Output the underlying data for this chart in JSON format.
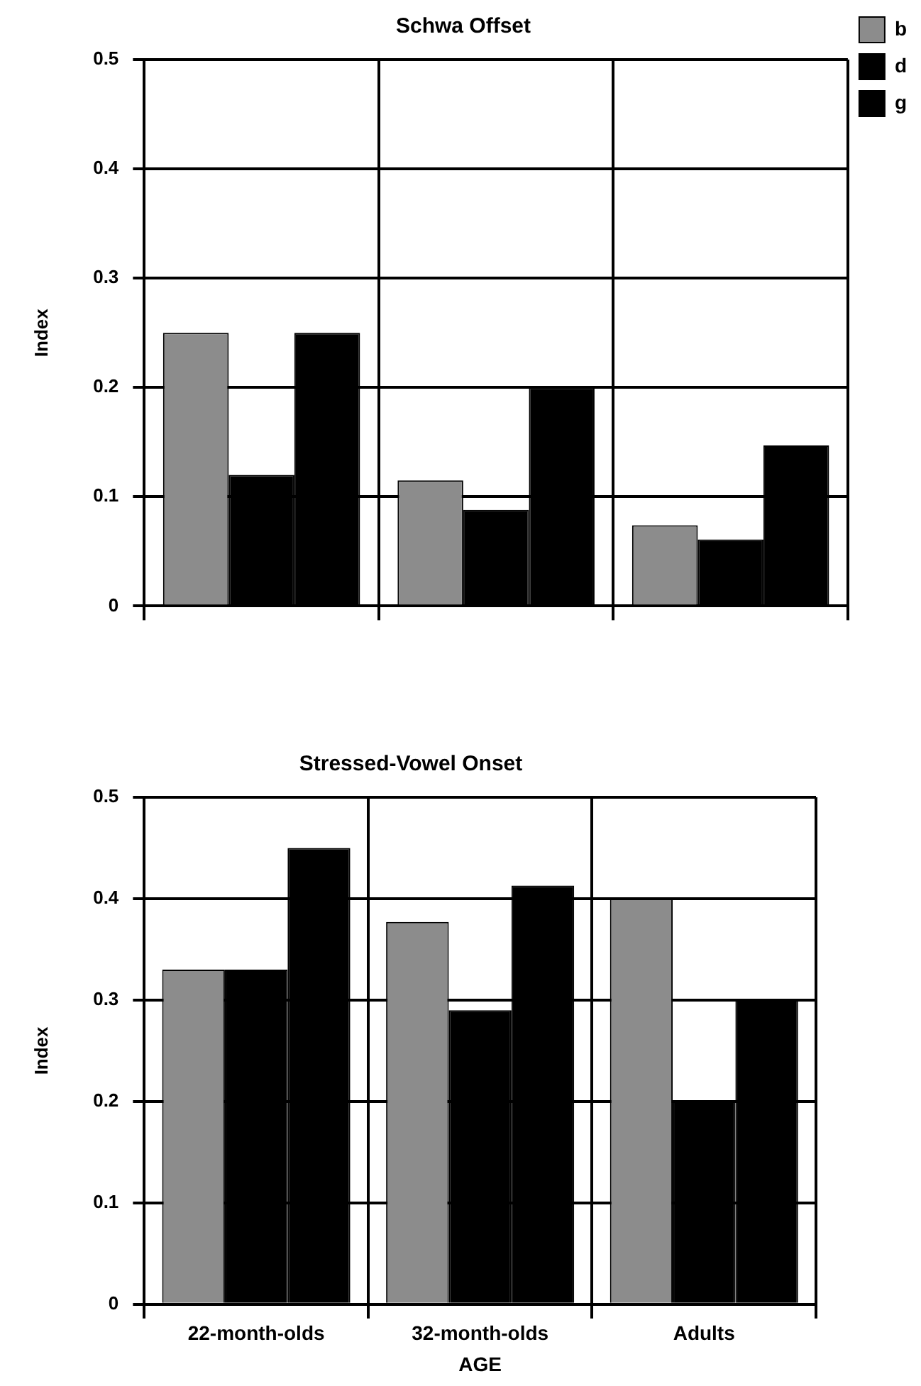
{
  "chart_data": [
    {
      "type": "bar",
      "title": "Schwa Offset",
      "ylabel": "Index",
      "categories": [
        null,
        null,
        null
      ],
      "tick_labels": "y",
      "ylim": [
        0,
        0.5
      ],
      "yticks": [
        0,
        0.1,
        0.2,
        0.3,
        0.4,
        0.5
      ],
      "grid": true,
      "legend": "top right",
      "series": [
        {
          "name": "b",
          "color": "#8c8c8c",
          "values": [
            0.25,
            0.115,
            0.074
          ]
        },
        {
          "name": "d",
          "color": "#000000",
          "values": [
            0.12,
            0.088,
            0.061
          ]
        },
        {
          "name": "g",
          "color": "#000000",
          "values": [
            0.25,
            0.2,
            0.147
          ]
        }
      ]
    },
    {
      "type": "bar",
      "title": "Stressed-Vowel Onset",
      "xlabel": "AGE",
      "ylabel": "Index",
      "categories": [
        "22-month-olds",
        "32-month-olds",
        "Adults"
      ],
      "ylim": [
        0,
        0.5
      ],
      "yticks": [
        0,
        0.1,
        0.2,
        0.3,
        0.4,
        0.5
      ],
      "grid": true,
      "series": [
        {
          "color": "#8c8c8c",
          "values": [
            0.33,
            0.377,
            0.4
          ]
        },
        {
          "color": "#000000",
          "values": [
            0.33,
            0.29,
            0.2
          ]
        },
        {
          "color": "#000000",
          "values": [
            0.45,
            0.413,
            0.3
          ]
        }
      ]
    }
  ]
}
